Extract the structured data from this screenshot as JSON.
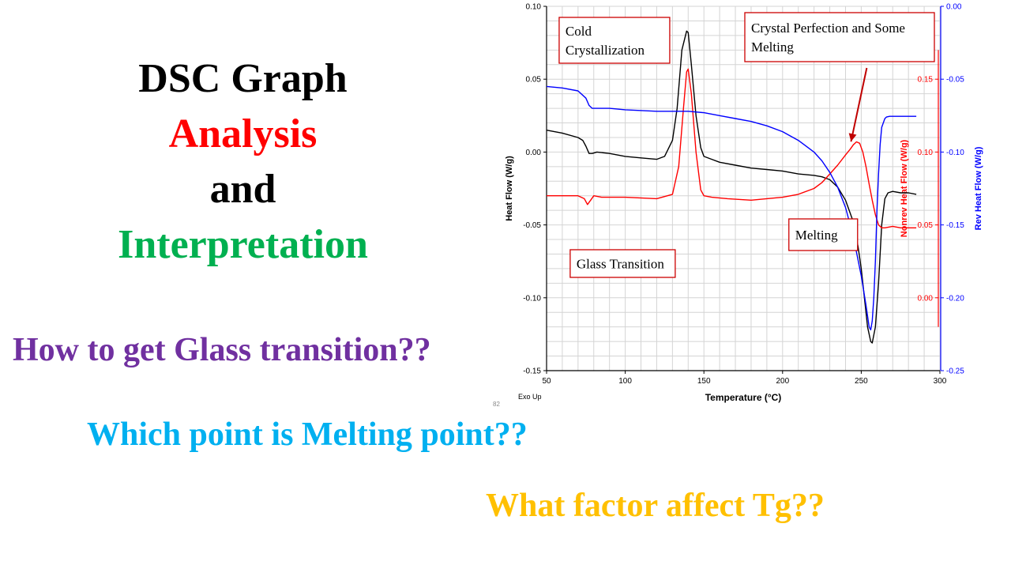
{
  "slide": {
    "title_line1": "DSC Graph",
    "title_line2": "Analysis",
    "title_line3": "and",
    "title_line4": "Interpretation",
    "question1": "How to get Glass transition??",
    "question2": "Which point is Melting point??",
    "question3": "What factor affect Tg??"
  },
  "colors": {
    "title_black": "#000000",
    "analysis_red": "#ff0000",
    "interpretation_green": "#00b050",
    "question1_purple": "#7030a0",
    "question2_blue": "#00b0f0",
    "question3_gold": "#ffc000",
    "heat_flow": "#000000",
    "nonrev_heat_flow": "#ff0000",
    "rev_heat_flow": "#0000ff",
    "annotation_border": "#cc0000",
    "grid": "#d4d4d4"
  },
  "chart_data": {
    "type": "line",
    "xlabel": "Temperature (°C)",
    "ylabel_left": "Heat Flow (W/g)",
    "ylabel_right1": "Nonrev Heat Flow (W/g)",
    "ylabel_right2": "Rev Heat Flow (W/g)",
    "corner_label": "Exo Up",
    "page_number": "82",
    "xlim": [
      50,
      300
    ],
    "ylim_left": [
      -0.15,
      0.1
    ],
    "ylim_right1": [
      -0.05,
      0.2
    ],
    "ylim_right2": [
      -0.25,
      0.0
    ],
    "x_ticks": [
      "50",
      "100",
      "150",
      "200",
      "250",
      "300"
    ],
    "y_ticks_left": [
      "0.10",
      "0.05",
      "0.00",
      "-0.05",
      "-0.10",
      "-0.15"
    ],
    "y_ticks_right1": [
      "0.15",
      "0.10",
      "0.05",
      "0.00"
    ],
    "y_ticks_right2": [
      "0.00",
      "-0.05",
      "-0.10",
      "-0.15",
      "-0.20",
      "-0.25"
    ],
    "grid": true,
    "series": [
      {
        "name": "Heat Flow",
        "axis": "left",
        "color": "#000000",
        "x": [
          50,
          60,
          70,
          73,
          75,
          77,
          79,
          82,
          90,
          100,
          110,
          120,
          125,
          130,
          133,
          136,
          139,
          140,
          142,
          145,
          148,
          150,
          155,
          160,
          170,
          180,
          190,
          200,
          210,
          220,
          225,
          230,
          235,
          240,
          245,
          248,
          250,
          252,
          254,
          256,
          257,
          259,
          261,
          263,
          265,
          267,
          270,
          275,
          280,
          285
        ],
        "values": [
          0.015,
          0.013,
          0.01,
          0.008,
          0.004,
          -0.001,
          -0.001,
          0.0,
          -0.001,
          -0.003,
          -0.004,
          -0.005,
          -0.003,
          0.008,
          0.03,
          0.07,
          0.083,
          0.082,
          0.06,
          0.025,
          0.003,
          -0.003,
          -0.005,
          -0.007,
          -0.009,
          -0.011,
          -0.012,
          -0.013,
          -0.015,
          -0.016,
          -0.017,
          -0.019,
          -0.024,
          -0.033,
          -0.048,
          -0.065,
          -0.08,
          -0.1,
          -0.12,
          -0.13,
          -0.131,
          -0.12,
          -0.09,
          -0.05,
          -0.032,
          -0.028,
          -0.027,
          -0.028,
          -0.028,
          -0.029
        ]
      },
      {
        "name": "Nonrev Heat Flow",
        "axis": "right1",
        "color": "#ff0000",
        "x": [
          50,
          60,
          70,
          74,
          76,
          78,
          80,
          85,
          100,
          120,
          130,
          134,
          137,
          139,
          140,
          142,
          145,
          148,
          150,
          155,
          165,
          180,
          200,
          210,
          220,
          225,
          230,
          235,
          240,
          243,
          245,
          247,
          249,
          251,
          253,
          255,
          257,
          259,
          261,
          263,
          265,
          270,
          275,
          280,
          285
        ],
        "values": [
          0.07,
          0.07,
          0.07,
          0.068,
          0.064,
          0.067,
          0.07,
          0.069,
          0.069,
          0.068,
          0.071,
          0.09,
          0.13,
          0.155,
          0.157,
          0.14,
          0.1,
          0.074,
          0.07,
          0.069,
          0.068,
          0.067,
          0.069,
          0.071,
          0.075,
          0.079,
          0.085,
          0.091,
          0.098,
          0.102,
          0.105,
          0.107,
          0.106,
          0.1,
          0.09,
          0.078,
          0.067,
          0.057,
          0.05,
          0.048,
          0.048,
          0.049,
          0.048,
          0.048,
          0.048
        ]
      },
      {
        "name": "Rev Heat Flow",
        "axis": "right2",
        "color": "#0000ff",
        "x": [
          50,
          60,
          70,
          75,
          77,
          79,
          80,
          90,
          100,
          120,
          140,
          150,
          160,
          170,
          180,
          190,
          200,
          210,
          220,
          225,
          230,
          235,
          240,
          245,
          250,
          253,
          255,
          256,
          257,
          258,
          259,
          260,
          261,
          262,
          263,
          265,
          266,
          268,
          270,
          275,
          280,
          285
        ],
        "values": [
          -0.055,
          -0.056,
          -0.058,
          -0.063,
          -0.068,
          -0.07,
          -0.07,
          -0.07,
          -0.071,
          -0.072,
          -0.072,
          -0.073,
          -0.075,
          -0.077,
          -0.079,
          -0.082,
          -0.086,
          -0.092,
          -0.1,
          -0.106,
          -0.114,
          -0.124,
          -0.138,
          -0.158,
          -0.185,
          -0.205,
          -0.22,
          -0.222,
          -0.216,
          -0.2,
          -0.175,
          -0.14,
          -0.115,
          -0.095,
          -0.083,
          -0.077,
          -0.076,
          -0.0755,
          -0.0755,
          -0.0755,
          -0.0755,
          -0.0755
        ]
      }
    ],
    "annotations": [
      {
        "name": "cold-crystallization",
        "lines": [
          "Cold",
          "Crystallization"
        ]
      },
      {
        "name": "crystal-perfection",
        "lines": [
          "Crystal Perfection and Some",
          "Melting"
        ]
      },
      {
        "name": "melting",
        "lines": [
          "Melting"
        ]
      },
      {
        "name": "glass-transition",
        "lines": [
          "Glass Transition"
        ]
      }
    ]
  }
}
